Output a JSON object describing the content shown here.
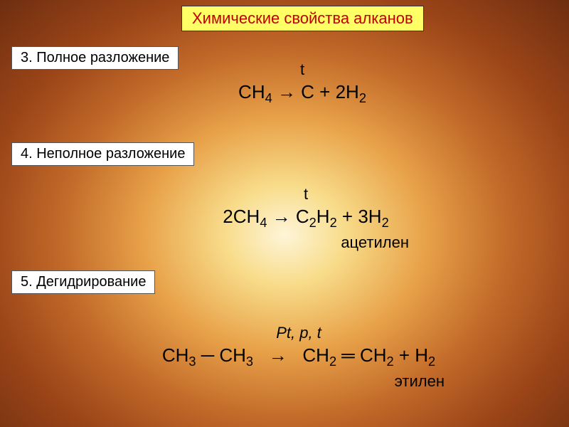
{
  "title": "Химические свойства алканов",
  "sections": {
    "s3": "3. Полное разложение",
    "s4": "4. Неполное разложение",
    "s5": "5.  Дегидрирование"
  },
  "equations": {
    "eq1": {
      "condition": "t",
      "formula_html": "CH<sub>4</sub> → C + 2H<sub>2</sub>"
    },
    "eq2": {
      "condition": "t",
      "formula_html": "2CH<sub>4</sub> → C<sub>2</sub>H<sub>2</sub> + 3H<sub>2</sub>",
      "product": "ацетилен"
    },
    "eq3": {
      "condition_html": "<span class='condition-italic'>Pt, p, t</span>",
      "formula_html": "CH<sub>3</sub> ─ CH<sub>3</sub>&nbsp;&nbsp;&nbsp;→&nbsp;&nbsp;&nbsp;CH<sub>2</sub> ═ CH<sub>2</sub> + H<sub>2</sub>",
      "product": "этилен"
    }
  },
  "colors": {
    "title_bg": "#ffff66",
    "title_text": "#c00000",
    "section_bg": "#ffffff",
    "text": "#000000"
  },
  "typography": {
    "title_fontsize": 22,
    "section_fontsize": 20,
    "formula_fontsize": 26,
    "condition_fontsize": 22
  }
}
